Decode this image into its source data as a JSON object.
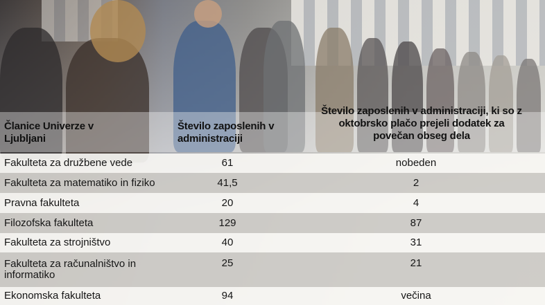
{
  "table": {
    "headers": {
      "member": "Članice Univerze v Ljubljani",
      "staff": "Število zaposlenih v administraciji",
      "bonus": "Število zaposlenih v administraciji, ki so z oktobrsko plačo prejeli dodatek za povečan obseg dela"
    },
    "rows": [
      {
        "member": "Fakulteta za družbene vede",
        "staff": "61",
        "bonus": "nobeden"
      },
      {
        "member": "Fakulteta za matematiko in fiziko",
        "staff": "41,5",
        "bonus": "2"
      },
      {
        "member": "Pravna fakulteta",
        "staff": "20",
        "bonus": "4"
      },
      {
        "member": "Filozofska fakulteta",
        "staff": "129",
        "bonus": "87"
      },
      {
        "member": "Fakulteta za strojništvo",
        "staff": "40",
        "bonus": "31"
      },
      {
        "member": "Fakulteta za računalništvo in informatiko",
        "staff": "25",
        "bonus": "21"
      },
      {
        "member": "Ekonomska fakulteta",
        "staff": "94",
        "bonus": "večina"
      }
    ]
  }
}
